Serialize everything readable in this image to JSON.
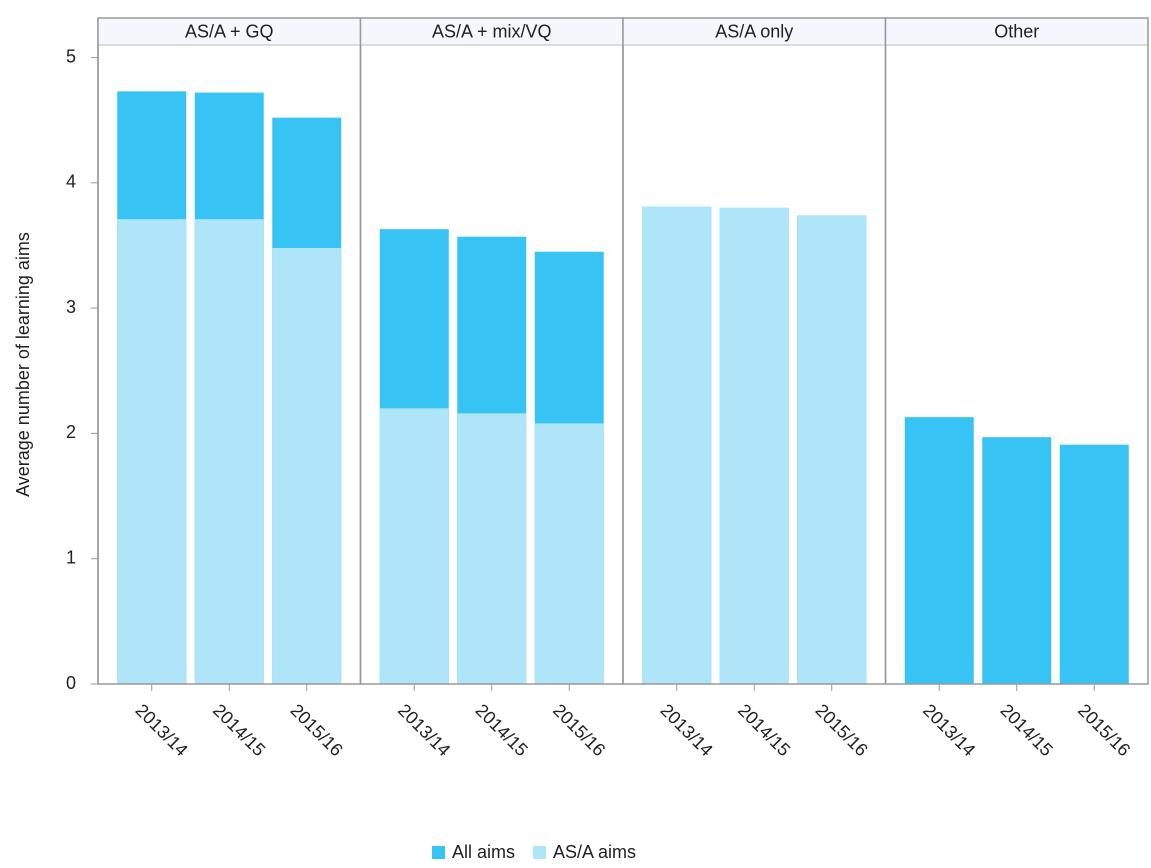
{
  "chart_data": [
    {
      "type": "bar",
      "title": "AS/A + GQ",
      "ylabel": "Average number of learning aims",
      "ylim": [
        0,
        5.1
      ],
      "yticks": [
        0,
        1,
        2,
        3,
        4,
        5
      ],
      "categories": [
        "2013/14",
        "2014/15",
        "2015/16"
      ],
      "series": [
        {
          "name": "All aims",
          "color": "#38c3f5",
          "values": [
            4.73,
            4.72,
            4.52
          ]
        },
        {
          "name": "AS/A aims",
          "color": "#aee5f9",
          "values": [
            3.71,
            3.71,
            3.48
          ]
        }
      ]
    },
    {
      "type": "bar",
      "title": "AS/A + mix/VQ",
      "categories": [
        "2013/14",
        "2014/15",
        "2015/16"
      ],
      "series": [
        {
          "name": "All aims",
          "color": "#38c3f5",
          "values": [
            3.63,
            3.57,
            3.45
          ]
        },
        {
          "name": "AS/A aims",
          "color": "#aee5f9",
          "values": [
            2.2,
            2.16,
            2.08
          ]
        }
      ]
    },
    {
      "type": "bar",
      "title": "AS/A only",
      "categories": [
        "2013/14",
        "2014/15",
        "2015/16"
      ],
      "series": [
        {
          "name": "All aims",
          "color": "#38c3f5",
          "values": [
            3.81,
            3.8,
            3.74
          ]
        },
        {
          "name": "AS/A aims",
          "color": "#aee5f9",
          "values": [
            3.81,
            3.8,
            3.74
          ]
        }
      ]
    },
    {
      "type": "bar",
      "title": "Other",
      "categories": [
        "2013/14",
        "2014/15",
        "2015/16"
      ],
      "series": [
        {
          "name": "All aims",
          "color": "#38c3f5",
          "values": [
            2.13,
            1.97,
            1.91
          ]
        },
        {
          "name": "AS/A aims",
          "color": "#aee5f9",
          "values": [
            0,
            0,
            0
          ]
        }
      ]
    }
  ]
}
